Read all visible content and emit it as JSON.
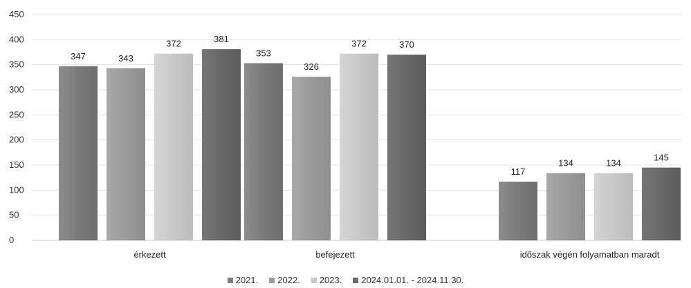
{
  "chart_data": {
    "type": "bar",
    "categories": [
      "érkezett",
      "befejezett",
      "időszak végén folyamatban maradt"
    ],
    "series": [
      {
        "name": "2021.",
        "values": [
          347,
          353,
          117
        ],
        "color": "#7d7d7d"
      },
      {
        "name": "2022.",
        "values": [
          343,
          326,
          134
        ],
        "color": "#9a9a9a"
      },
      {
        "name": "2023.",
        "values": [
          372,
          372,
          134
        ],
        "color": "#c7c7c7"
      },
      {
        "name": "2024.01.01. - 2024.11.30.",
        "values": [
          381,
          370,
          145
        ],
        "color": "#6a6a6a"
      }
    ],
    "ylim": [
      0,
      450
    ],
    "yticks": [
      "0",
      "50",
      "100",
      "150",
      "200",
      "250",
      "300",
      "350",
      "400",
      "450"
    ],
    "grid": true,
    "legend_position": "bottom",
    "data_labels": true
  },
  "legend": {
    "items": [
      "2021.",
      "2022.",
      "2023.",
      "2024.01.01. - 2024.11.30."
    ]
  }
}
